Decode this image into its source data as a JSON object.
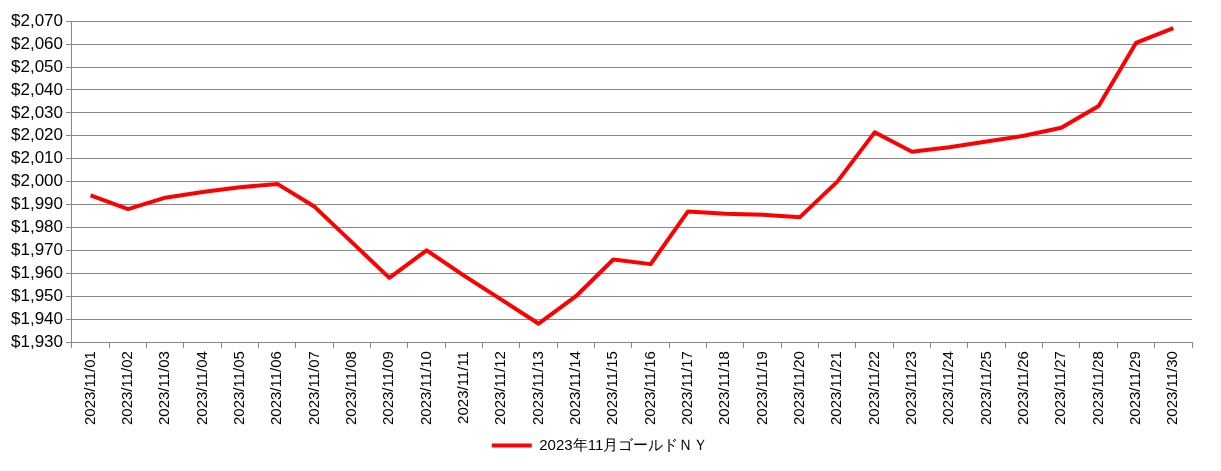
{
  "chart_data": {
    "type": "line",
    "categories": [
      "2023/11/01",
      "2023/11/02",
      "2023/11/03",
      "2023/11/04",
      "2023/11/05",
      "2023/11/06",
      "2023/11/07",
      "2023/11/08",
      "2023/11/09",
      "2023/11/10",
      "2023/11/11",
      "2023/11/12",
      "2023/11/13",
      "2023/11/14",
      "2023/11/15",
      "2023/11/16",
      "2023/11/17",
      "2023/11/18",
      "2023/11/19",
      "2023/11/20",
      "2023/11/21",
      "2023/11/22",
      "2023/11/23",
      "2023/11/24",
      "2023/11/25",
      "2023/11/26",
      "2023/11/27",
      "2023/11/28",
      "2023/11/29",
      "2023/11/30"
    ],
    "series": [
      {
        "name": "2023年11月ゴールドＮＹ",
        "color": "#ff0000",
        "values": [
          1994,
          1988,
          1993,
          1995.5,
          1997.5,
          1999,
          1989,
          1973.5,
          1958,
          1970,
          1959,
          1948.5,
          1938,
          1950,
          1966,
          1964,
          1987,
          1986,
          1985.5,
          1984.5,
          2000,
          2021.5,
          2013,
          2015,
          2017.5,
          2020,
          2023.5,
          2033,
          2060.5,
          2067
        ]
      }
    ],
    "ylim": [
      1930,
      2070
    ],
    "yticks": [
      {
        "value": 1930,
        "label": "$1,930"
      },
      {
        "value": 1940,
        "label": "$1,940"
      },
      {
        "value": 1950,
        "label": "$1,950"
      },
      {
        "value": 1960,
        "label": "$1,960"
      },
      {
        "value": 1970,
        "label": "$1,970"
      },
      {
        "value": 1980,
        "label": "$1,980"
      },
      {
        "value": 1990,
        "label": "$1,990"
      },
      {
        "value": 2000,
        "label": "$2,000"
      },
      {
        "value": 2010,
        "label": "$2,010"
      },
      {
        "value": 2020,
        "label": "$2,020"
      },
      {
        "value": 2030,
        "label": "$2,030"
      },
      {
        "value": 2040,
        "label": "$2,040"
      },
      {
        "value": 2050,
        "label": "$2,050"
      },
      {
        "value": 2060,
        "label": "$2,060"
      },
      {
        "value": 2070,
        "label": "$2,070"
      }
    ],
    "grid": "y",
    "legend": "bottom",
    "marker": "none",
    "line_style": "solid"
  }
}
